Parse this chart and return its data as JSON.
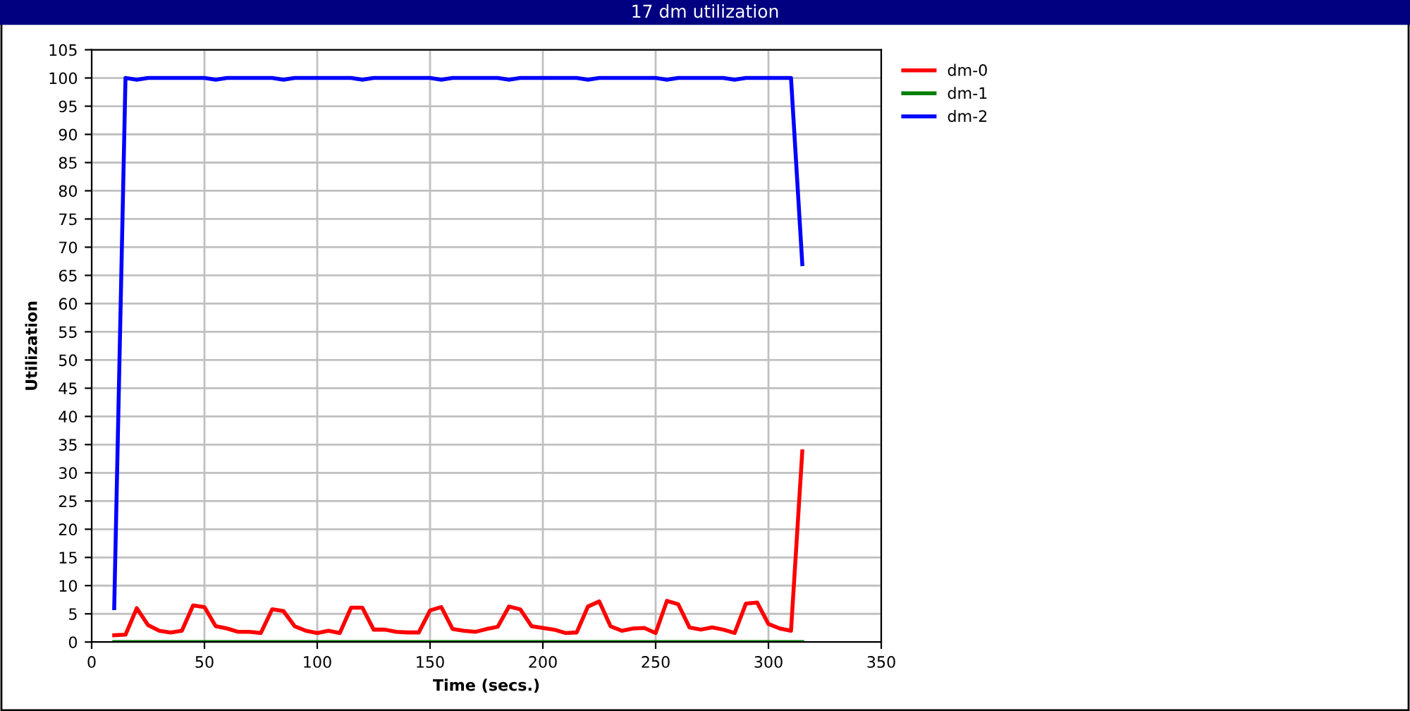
{
  "chart_data": {
    "type": "line",
    "title": "17 dm utilization",
    "xlabel": "Time (secs.)",
    "ylabel": "Utilization",
    "x": [
      10,
      15,
      20,
      25,
      30,
      35,
      40,
      45,
      50,
      55,
      60,
      65,
      70,
      75,
      80,
      85,
      90,
      95,
      100,
      105,
      110,
      115,
      120,
      125,
      130,
      135,
      140,
      145,
      150,
      155,
      160,
      165,
      170,
      175,
      180,
      185,
      190,
      195,
      200,
      205,
      210,
      215,
      220,
      225,
      230,
      235,
      240,
      245,
      250,
      255,
      260,
      265,
      270,
      275,
      280,
      285,
      290,
      295,
      300,
      305,
      310,
      315
    ],
    "series": [
      {
        "name": "dm-0",
        "color": "#ff0000",
        "values": [
          1.2,
          1.3,
          6,
          3,
          2,
          1.7,
          2,
          6.5,
          6.2,
          2.8,
          2.4,
          1.8,
          1.8,
          1.6,
          5.8,
          5.5,
          2.8,
          2,
          1.6,
          2,
          1.6,
          6.1,
          6.1,
          2.2,
          2.2,
          1.8,
          1.7,
          1.7,
          5.6,
          6.2,
          2.3,
          2,
          1.8,
          2.3,
          2.7,
          6.3,
          5.8,
          2.8,
          2.5,
          2.2,
          1.6,
          1.7,
          6.3,
          7.2,
          2.8,
          2,
          2.4,
          2.5,
          1.6,
          7.3,
          6.7,
          2.6,
          2.2,
          2.6,
          2.2,
          1.6,
          6.8,
          7,
          3.2,
          2.4,
          2,
          33.8
        ]
      },
      {
        "name": "dm-1",
        "color": "#008000",
        "values": [
          0,
          0,
          0,
          0,
          0,
          0,
          0,
          0,
          0,
          0,
          0,
          0,
          0,
          0,
          0,
          0,
          0,
          0,
          0,
          0,
          0,
          0,
          0,
          0,
          0,
          0,
          0,
          0,
          0,
          0,
          0,
          0,
          0,
          0,
          0,
          0,
          0,
          0,
          0,
          0,
          0,
          0,
          0,
          0,
          0,
          0,
          0,
          0,
          0,
          0,
          0,
          0,
          0,
          0,
          0,
          0,
          0,
          0,
          0,
          0,
          0,
          0
        ]
      },
      {
        "name": "dm-2",
        "color": "#0000ff",
        "values": [
          6,
          100,
          99.7,
          100,
          100,
          100,
          100,
          100,
          100,
          99.7,
          100,
          100,
          100,
          100,
          100,
          99.7,
          100,
          100,
          100,
          100,
          100,
          100,
          99.7,
          100,
          100,
          100,
          100,
          100,
          100,
          99.7,
          100,
          100,
          100,
          100,
          100,
          99.7,
          100,
          100,
          100,
          100,
          100,
          100,
          99.7,
          100,
          100,
          100,
          100,
          100,
          100,
          99.7,
          100,
          100,
          100,
          100,
          100,
          99.7,
          100,
          100,
          100,
          100,
          100,
          67
        ]
      }
    ],
    "xlim": [
      0,
      350
    ],
    "xticks": [
      0,
      50,
      100,
      150,
      200,
      250,
      300,
      350
    ],
    "ylim": [
      0,
      105
    ],
    "yticks": [
      0,
      5,
      10,
      15,
      20,
      25,
      30,
      35,
      40,
      45,
      50,
      55,
      60,
      65,
      70,
      75,
      80,
      85,
      90,
      95,
      100,
      105
    ],
    "grid": true,
    "legend": "top right",
    "marker": "none",
    "line_style": "solid"
  }
}
